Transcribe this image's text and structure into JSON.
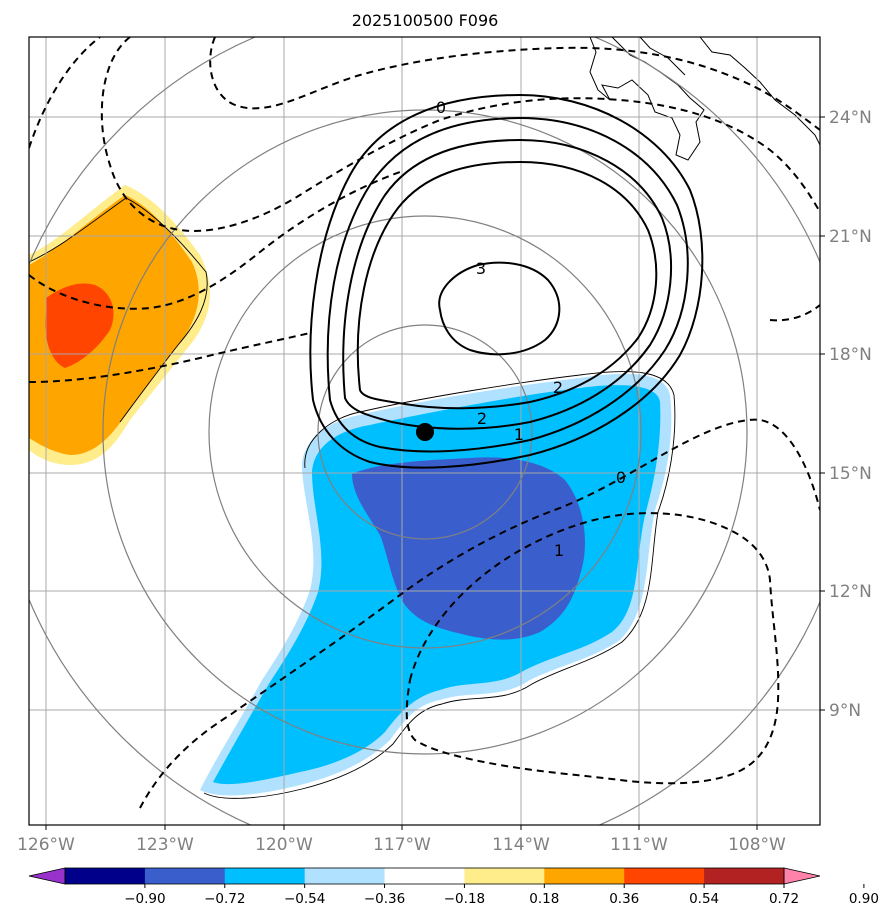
{
  "title": "2025100500 F096",
  "map": {
    "lon_labels": [
      "126°W",
      "123°W",
      "120°W",
      "117°W",
      "114°W",
      "111°W",
      "108°W"
    ],
    "lat_labels": [
      "24°N",
      "21°N",
      "18°N",
      "15°N",
      "12°N",
      "9°N"
    ],
    "extent": {
      "lon": [
        -126.4,
        -106.4
      ],
      "lat": [
        6.6,
        26.6
      ]
    },
    "center": {
      "lon": -116.5,
      "lat": 16.0,
      "label": "storm-center"
    },
    "positive_contour_labels": [
      "0",
      "3",
      "2",
      "2",
      "1"
    ],
    "negative_contour_labels": [
      "0",
      "1"
    ]
  },
  "colorbar": {
    "ticks": [
      "−0.90",
      "−0.72",
      "−0.54",
      "−0.36",
      "−0.18",
      "0.18",
      "0.36",
      "0.54",
      "0.72",
      "0.90"
    ],
    "colors": [
      "#9932cc",
      "#00008b",
      "#3a5fcd",
      "#00bfff",
      "#b0e2ff",
      "#ffffff",
      "#ffec8b",
      "#ffa500",
      "#ff4500",
      "#b22222",
      "#ff82ab"
    ]
  }
}
